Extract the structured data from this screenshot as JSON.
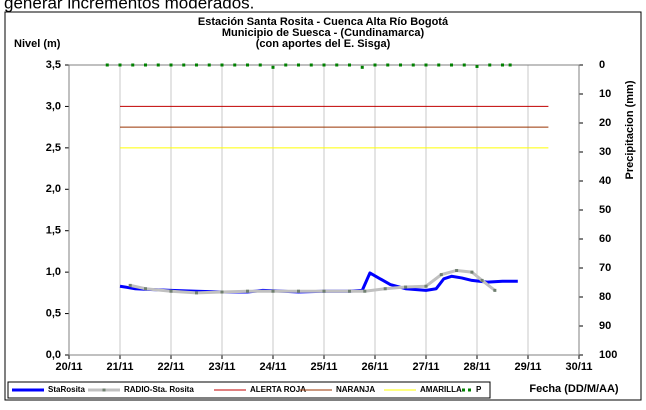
{
  "caption": "generar incrementos moderados.",
  "chart_data": {
    "type": "line",
    "title": [
      "Estación Santa Rosita - Cuenca Alta Río Bogotá",
      "Municipio de Suesca - (Cundinamarca)",
      "(con aportes del  E. Sisga)"
    ],
    "ylabel": "Nivel (m)",
    "y2label": "Precipitacion (mm)",
    "xlabel": "Fecha (DD/M/AA)",
    "xlim": [
      20,
      30
    ],
    "xticks": [
      {
        "value": 20,
        "label": "20/11"
      },
      {
        "value": 21,
        "label": "21/11"
      },
      {
        "value": 22,
        "label": "22/11"
      },
      {
        "value": 23,
        "label": "23/11"
      },
      {
        "value": 24,
        "label": "24/11"
      },
      {
        "value": 25,
        "label": "25/11"
      },
      {
        "value": 26,
        "label": "26/11"
      },
      {
        "value": 27,
        "label": "27/11"
      },
      {
        "value": 28,
        "label": "28/11"
      },
      {
        "value": 29,
        "label": "29/11"
      },
      {
        "value": 30,
        "label": "30/11"
      }
    ],
    "ylim": [
      0,
      3.5
    ],
    "yticks": [
      {
        "value": 0,
        "label": "0,0"
      },
      {
        "value": 0.5,
        "label": "0,5"
      },
      {
        "value": 1,
        "label": "1,0"
      },
      {
        "value": 1.5,
        "label": "1,5"
      },
      {
        "value": 2,
        "label": "2,0"
      },
      {
        "value": 2.5,
        "label": "2,5"
      },
      {
        "value": 3,
        "label": "3,0"
      },
      {
        "value": 3.5,
        "label": "3,5"
      }
    ],
    "y2lim": [
      100,
      0
    ],
    "y2ticks": [
      0,
      10,
      20,
      30,
      40,
      50,
      60,
      70,
      80,
      90,
      100
    ],
    "xgrid": true,
    "legend": "bottom",
    "series": [
      {
        "name": "StaRosita",
        "color": "#0000ff",
        "width": 3,
        "marker": false,
        "line": true,
        "x": [
          21.0,
          21.3,
          21.6,
          22.0,
          22.5,
          23.0,
          23.5,
          23.8,
          24.2,
          24.5,
          25.0,
          25.5,
          25.75,
          25.9,
          26.1,
          26.3,
          26.6,
          27.0,
          27.2,
          27.35,
          27.5,
          27.7,
          27.9,
          28.2,
          28.5,
          28.8
        ],
        "values": [
          0.83,
          0.8,
          0.79,
          0.78,
          0.77,
          0.76,
          0.76,
          0.78,
          0.77,
          0.76,
          0.77,
          0.77,
          0.78,
          0.99,
          0.92,
          0.85,
          0.8,
          0.78,
          0.8,
          0.92,
          0.95,
          0.93,
          0.9,
          0.88,
          0.89,
          0.89
        ]
      },
      {
        "name": "RADIO-Sta. Rosita",
        "color": "#c0c0c0",
        "width": 3,
        "marker": true,
        "line": true,
        "x": [
          21.2,
          21.5,
          22.0,
          22.5,
          23.0,
          23.5,
          24.0,
          24.5,
          25.0,
          25.5,
          25.8,
          26.2,
          26.6,
          27.0,
          27.3,
          27.6,
          27.9,
          28.1,
          28.35
        ],
        "values": [
          0.84,
          0.8,
          0.77,
          0.75,
          0.76,
          0.77,
          0.77,
          0.77,
          0.77,
          0.77,
          0.77,
          0.8,
          0.82,
          0.83,
          0.97,
          1.02,
          1.0,
          0.9,
          0.78
        ]
      },
      {
        "name": "ALERTA ROJA",
        "color": "#c00000",
        "width": 1,
        "marker": false,
        "line": true,
        "x": [
          21,
          29.4
        ],
        "values": [
          3,
          3
        ]
      },
      {
        "name": "NARANJA",
        "color": "#993300",
        "width": 1,
        "marker": false,
        "line": true,
        "x": [
          21,
          29.4
        ],
        "values": [
          2.75,
          2.75
        ]
      },
      {
        "name": "AMARILLA",
        "color": "#ffff00",
        "width": 1,
        "marker": false,
        "line": true,
        "x": [
          21,
          29.4
        ],
        "values": [
          2.5,
          2.5
        ]
      },
      {
        "name": "P",
        "color": "#008000",
        "width": 1,
        "marker": true,
        "line": false,
        "axis": "y2",
        "x": [
          20.75,
          21.0,
          21.25,
          21.5,
          21.75,
          22.0,
          22.25,
          22.5,
          22.75,
          23.0,
          23.25,
          23.5,
          23.75,
          24.0,
          24.25,
          24.5,
          24.75,
          25.0,
          25.25,
          25.5,
          25.75,
          26.0,
          26.25,
          26.5,
          26.75,
          27.0,
          27.25,
          27.5,
          27.75,
          28.0,
          28.25,
          28.5,
          28.65
        ],
        "values": [
          0,
          0,
          0,
          0,
          0,
          0,
          0,
          0,
          0,
          0,
          0,
          0,
          0,
          0.8,
          0,
          0,
          0,
          0,
          0,
          0,
          0.8,
          0,
          0,
          0,
          0,
          0,
          0,
          0,
          0,
          0.5,
          0,
          0,
          0
        ]
      }
    ]
  }
}
